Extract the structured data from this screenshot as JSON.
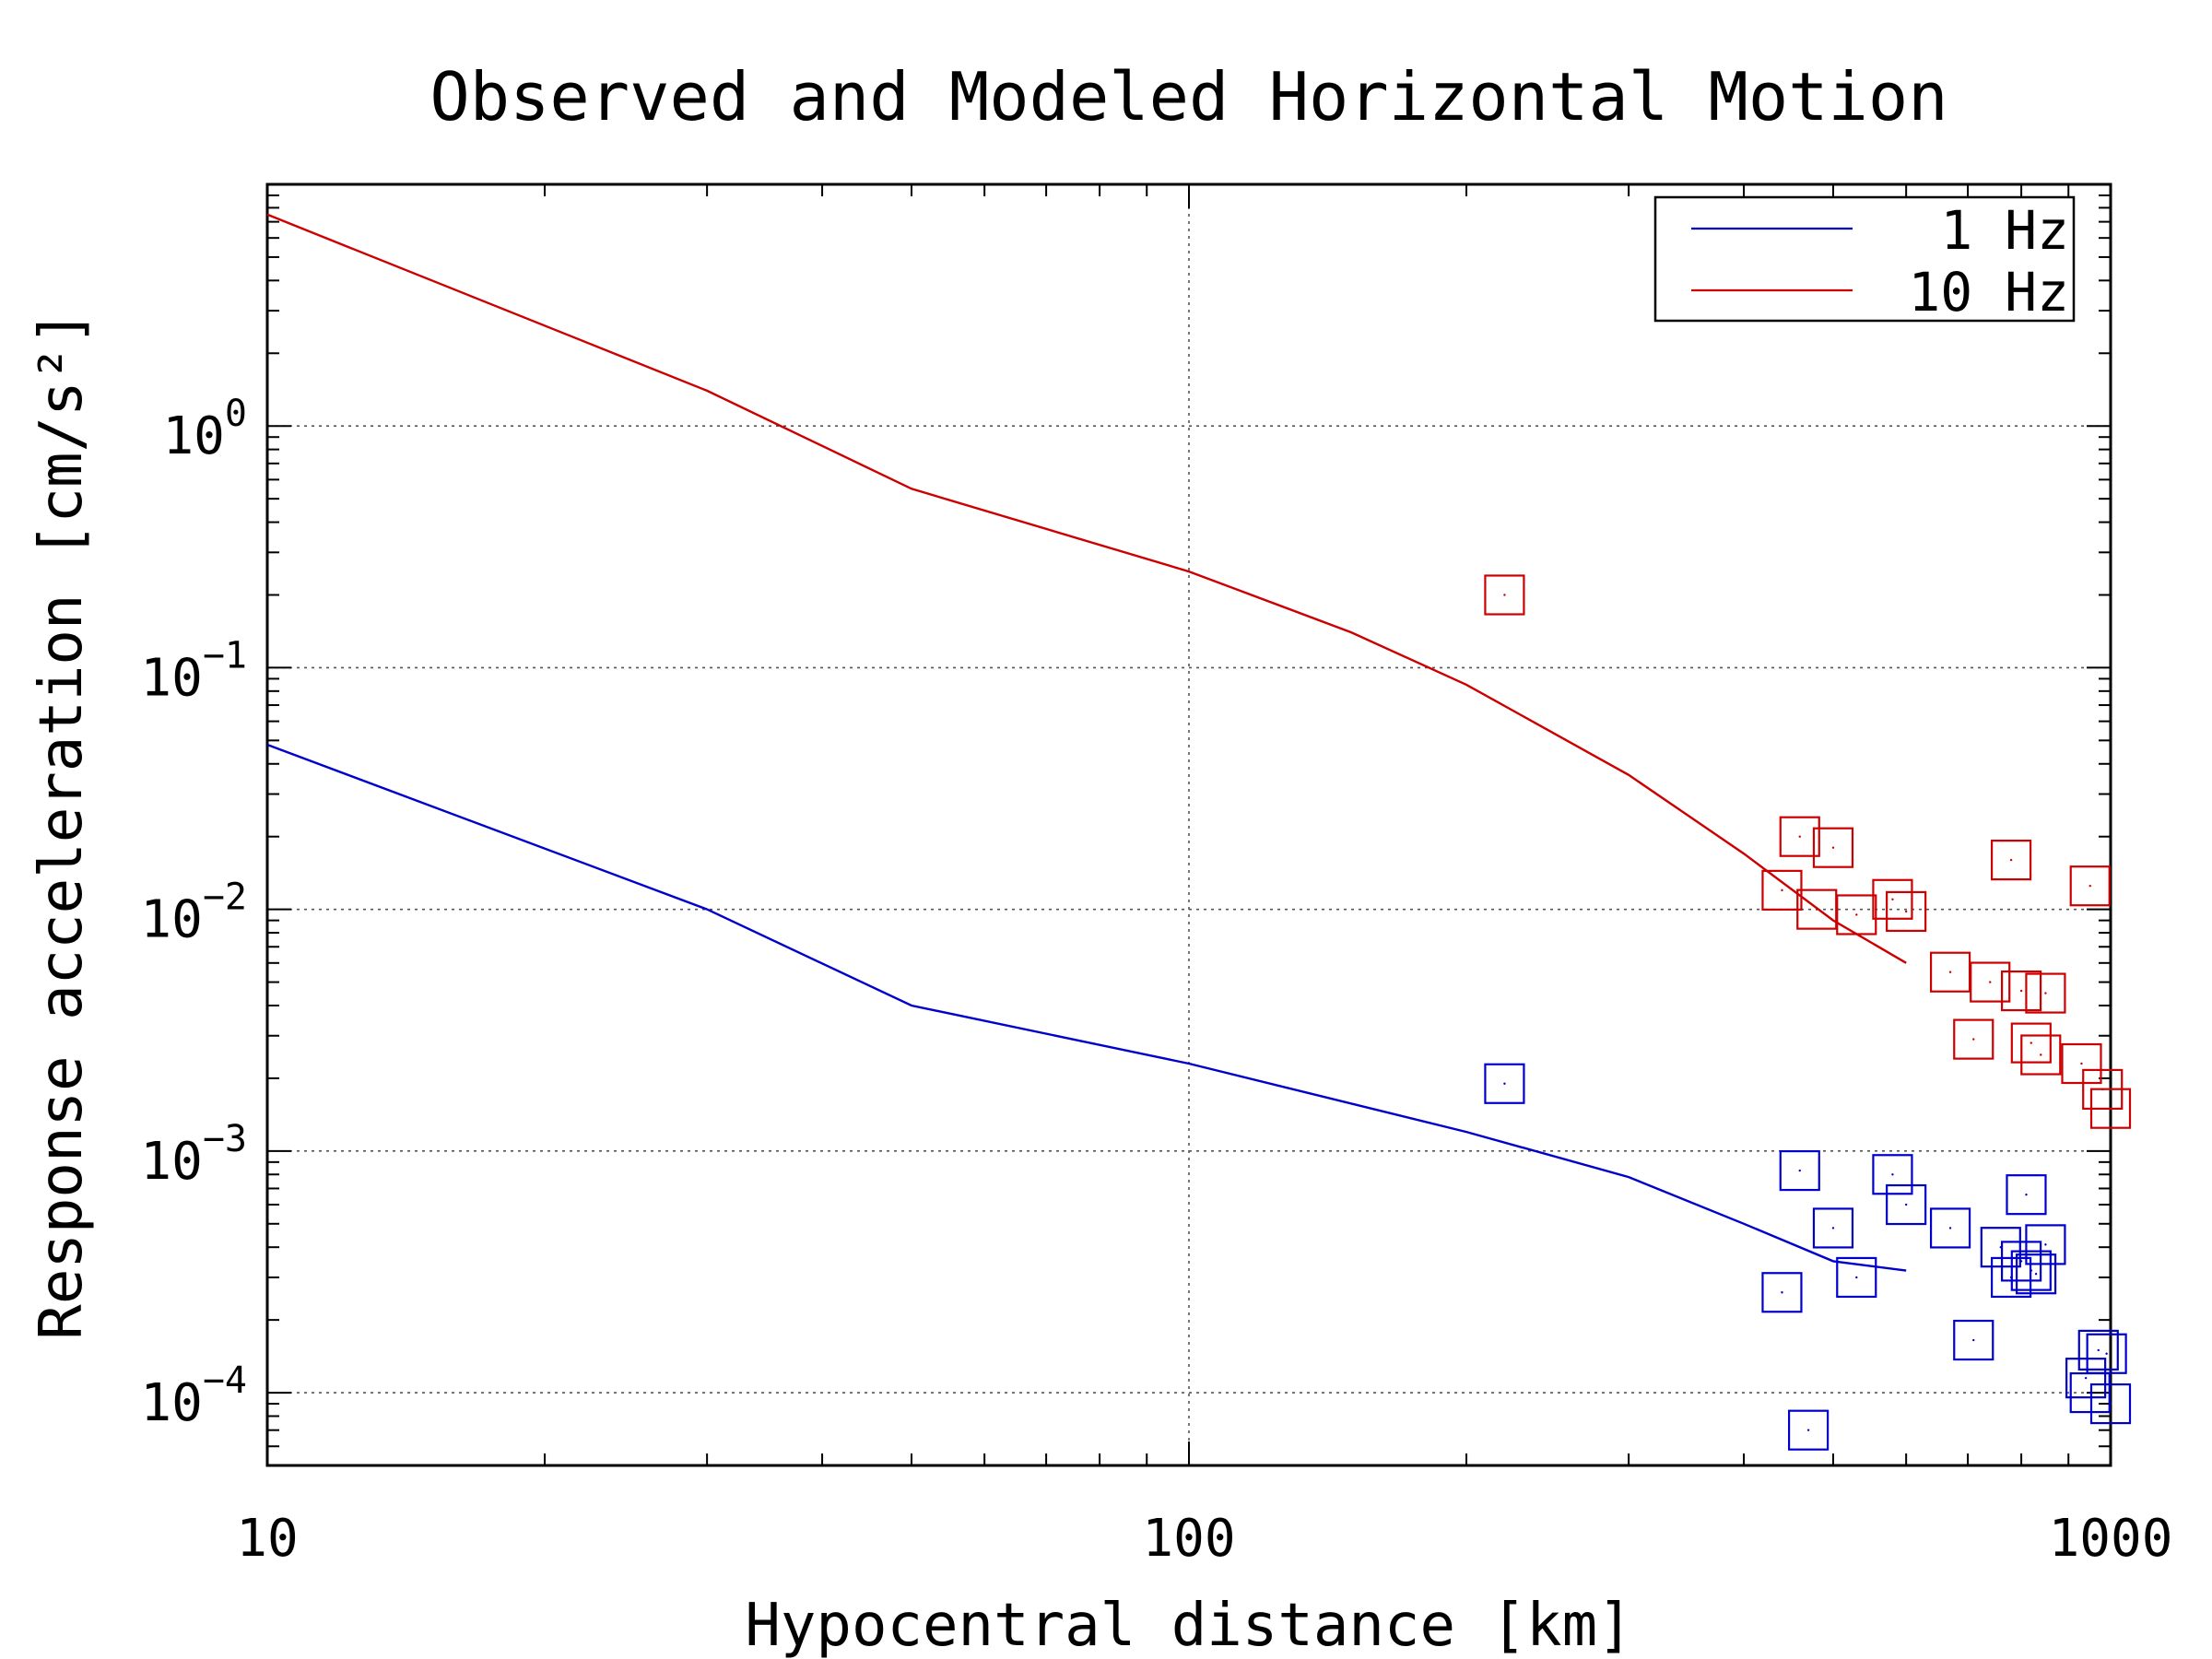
{
  "chart_data": {
    "type": "scatter",
    "title": "Observed and Modeled Horizontal Motion",
    "xlabel": "Hypocentral distance [km]",
    "ylabel": "Response acceleration [cm/s²]",
    "xscale": "log",
    "yscale": "log",
    "xlim": [
      10,
      1000
    ],
    "ylim": [
      5e-05,
      10
    ],
    "x_ticks": [
      10,
      100,
      1000
    ],
    "x_tick_labels": [
      "10",
      "100",
      "1000"
    ],
    "y_ticks": [
      0.0001,
      0.001,
      0.01,
      0.1,
      1
    ],
    "y_tick_labels": [
      {
        "base": "10",
        "exp": "−4"
      },
      {
        "base": "10",
        "exp": "−3"
      },
      {
        "base": "10",
        "exp": "−2"
      },
      {
        "base": "10",
        "exp": "−1"
      },
      {
        "base": "10",
        "exp": "0"
      }
    ],
    "grid": true,
    "legend": "top-right",
    "series": [
      {
        "name": "1 Hz",
        "color": "#0000cc",
        "line": {
          "x": [
            10,
            30,
            50,
            100,
            200,
            300,
            400,
            500,
            600
          ],
          "y": [
            0.048,
            0.01,
            0.004,
            0.0023,
            0.0012,
            0.00078,
            0.0005,
            0.00035,
            0.00032
          ]
        },
        "observed": {
          "x": [
            220,
            440,
            460,
            470,
            500,
            530,
            580,
            600,
            670,
            710,
            760,
            780,
            800,
            810,
            820,
            830,
            850,
            940,
            950,
            970,
            990,
            1000
          ],
          "y": [
            0.0019,
            0.00026,
            0.00083,
            7e-05,
            0.00048,
            0.0003,
            0.0008,
            0.0006,
            0.00048,
            0.000165,
            0.0004,
            0.0003,
            0.00035,
            0.00066,
            0.00032,
            0.00031,
            0.00041,
            0.000115,
            0.0001,
            0.00015,
            0.000145,
            9e-05
          ]
        }
      },
      {
        "name": "10 Hz",
        "color": "#cc0000",
        "line": {
          "x": [
            10,
            30,
            50,
            100,
            150,
            200,
            300,
            400,
            500,
            600
          ],
          "y": [
            7.5,
            1.4,
            0.55,
            0.25,
            0.14,
            0.085,
            0.036,
            0.017,
            0.009,
            0.006
          ]
        },
        "observed": {
          "x": [
            220,
            440,
            460,
            480,
            500,
            530,
            580,
            600,
            670,
            710,
            740,
            780,
            800,
            820,
            840,
            850,
            930,
            950,
            980,
            1000
          ],
          "y": [
            0.2,
            0.012,
            0.02,
            0.01,
            0.018,
            0.0095,
            0.011,
            0.0098,
            0.0055,
            0.0029,
            0.005,
            0.016,
            0.0046,
            0.0028,
            0.0025,
            0.0045,
            0.0023,
            0.0125,
            0.0018,
            0.0015
          ]
        }
      }
    ]
  }
}
